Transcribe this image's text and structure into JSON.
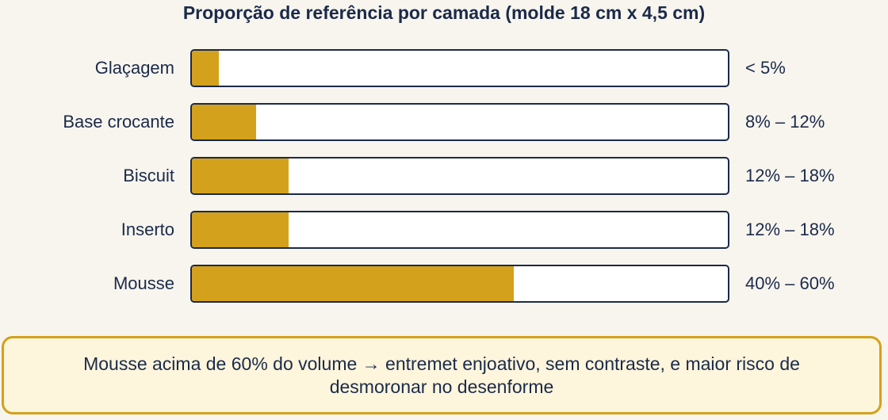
{
  "chart_data": {
    "type": "bar",
    "orientation": "horizontal",
    "title": "Proporção de referência por camada (molde 18 cm x 4,5 cm)",
    "categories": [
      "Glaçagem",
      "Base crocante",
      "Biscuit",
      "Inserto",
      "Mousse"
    ],
    "values": [
      5,
      12,
      18,
      18,
      60
    ],
    "value_labels": [
      "< 5%",
      "8% – 12%",
      "12% – 18%",
      "12% – 18%",
      "40% – 60%"
    ],
    "xlim": [
      0,
      100
    ],
    "unit": "%",
    "grid": false,
    "colors": {
      "fill": "#d4a11c",
      "track": "#ffffff",
      "border": "#1b2a4a",
      "text": "#1b2a4a"
    }
  },
  "note": {
    "text": "Mousse acima de 60% do volume → entremet enjoativo, sem contraste, e maior risco de desmoronar no desenforme"
  }
}
